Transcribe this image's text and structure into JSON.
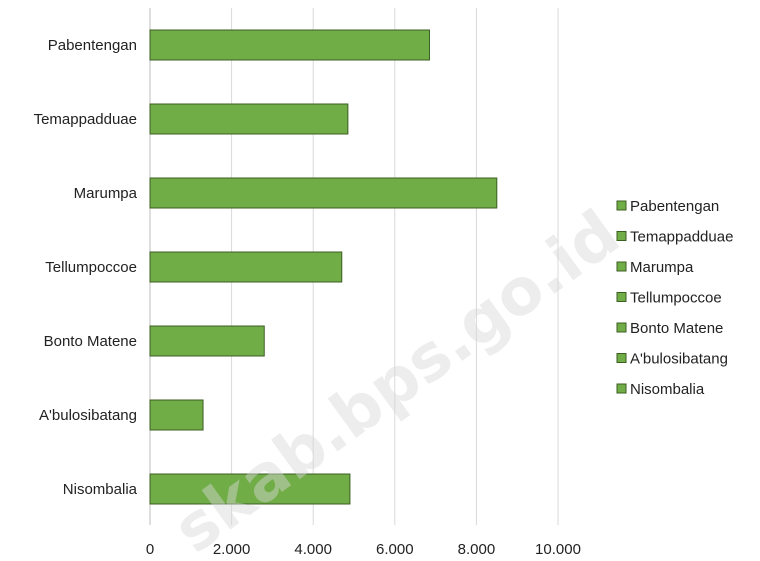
{
  "chart_data": {
    "type": "bar",
    "orientation": "horizontal",
    "categories": [
      "Pabentengan",
      "Temappadduae",
      "Marumpa",
      "Tellumpoccoe",
      "Bonto Matene",
      "A'bulosibatang",
      "Nisombalia"
    ],
    "values": [
      6850,
      4850,
      8500,
      4700,
      2800,
      1300,
      4900
    ],
    "xlim": [
      0,
      10000
    ],
    "xticks": [
      0,
      2000,
      4000,
      6000,
      8000,
      10000
    ],
    "xtick_labels": [
      "0",
      "2.000",
      "4.000",
      "6.000",
      "8.000",
      "10.000"
    ],
    "grid": "vertical",
    "legend_position": "right",
    "bar_color": "#70ad47",
    "bar_edge_color": "#3b5e23",
    "grid_color": "#d9d9d9"
  },
  "watermark": "skab.bps.go.id"
}
